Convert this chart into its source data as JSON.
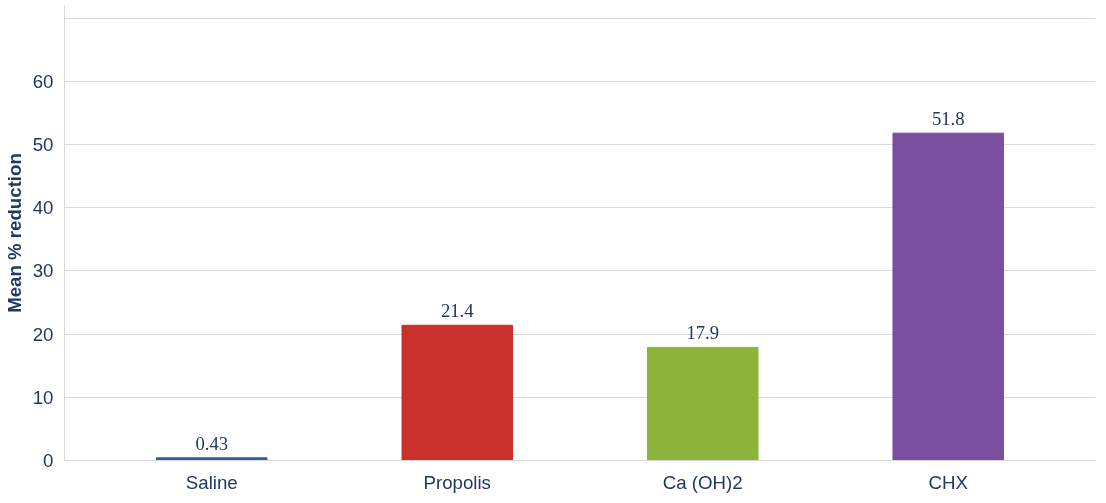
{
  "chart_data": {
    "type": "bar",
    "ylabel": "Mean % reduction",
    "categories": [
      "Saline",
      "Propolis",
      "Ca (OH)2",
      "CHX"
    ],
    "values": [
      0.43,
      21.4,
      17.9,
      51.8
    ],
    "colors": [
      "#2e5fa3",
      "#c9302c",
      "#8db43a",
      "#7a4fa0"
    ],
    "ylim": [
      0,
      72
    ],
    "yticks": [
      0,
      10,
      20,
      30,
      40,
      50,
      60,
      {
        "value": 70,
        "label": null
      }
    ],
    "grid": "y",
    "data_labels": true
  }
}
